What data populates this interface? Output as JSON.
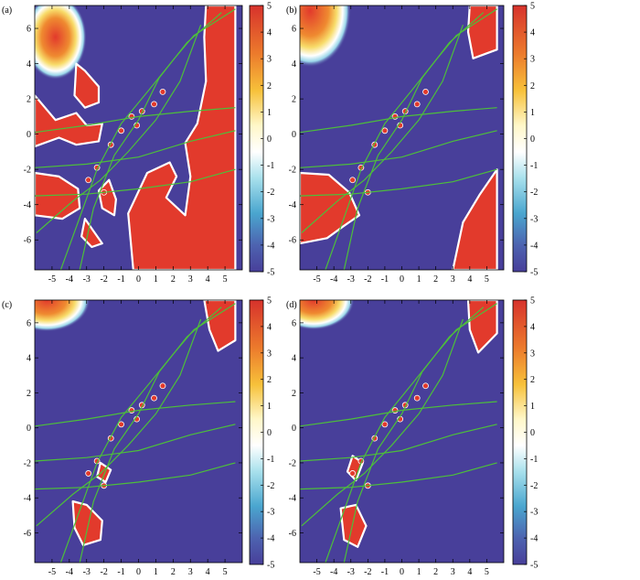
{
  "colors": {
    "background": "#483f9a",
    "positive": "#e23a2c",
    "ridge": "#ffffff",
    "curves": "#4dbf3a"
  },
  "chart_data": [
    {
      "type": "heatmap",
      "panel_label": "(a)",
      "xlim": [
        -6,
        6
      ],
      "ylim": [
        -7.7,
        7.3
      ],
      "xticks": [
        "-5",
        "-4",
        "-3",
        "-2",
        "-1",
        "0",
        "1",
        "2",
        "3",
        "4",
        "5"
      ],
      "yticks": [
        "6",
        "4",
        "2",
        "0",
        "-2",
        "-4",
        "-6"
      ],
      "colorbar": {
        "range": [
          -5,
          5
        ],
        "ticks": [
          "5",
          "4",
          "3",
          "2",
          "1",
          "0",
          "-1",
          "-2",
          "-3",
          "-4",
          "-5"
        ]
      },
      "grid": false
    },
    {
      "type": "heatmap",
      "panel_label": "(b)",
      "xlim": [
        -6,
        6
      ],
      "ylim": [
        -7.7,
        7.3
      ],
      "xticks": [
        "-5",
        "-4",
        "-3",
        "-2",
        "-1",
        "0",
        "1",
        "2",
        "3",
        "4",
        "5"
      ],
      "yticks": [
        "6",
        "4",
        "2",
        "0",
        "-2",
        "-4",
        "-6"
      ],
      "colorbar": {
        "range": [
          -5,
          5
        ],
        "ticks": [
          "5",
          "4",
          "3",
          "2",
          "1",
          "0",
          "-1",
          "-2",
          "-3",
          "-4",
          "-5"
        ]
      },
      "grid": false
    },
    {
      "type": "heatmap",
      "panel_label": "(c)",
      "xlim": [
        -6,
        6
      ],
      "ylim": [
        -7.7,
        7.3
      ],
      "xticks": [
        "-5",
        "-4",
        "-3",
        "-2",
        "-1",
        "0",
        "1",
        "2",
        "3",
        "4",
        "5"
      ],
      "yticks": [
        "6",
        "4",
        "2",
        "0",
        "-2",
        "-4",
        "-6"
      ],
      "colorbar": {
        "range": [
          -5,
          5
        ],
        "ticks": [
          "5",
          "4",
          "3",
          "2",
          "1",
          "0",
          "-1",
          "-2",
          "-3",
          "-4",
          "-5"
        ]
      },
      "grid": false
    },
    {
      "type": "heatmap",
      "panel_label": "(d)",
      "xlim": [
        -6,
        6
      ],
      "ylim": [
        -7.7,
        7.3
      ],
      "xticks": [
        "-5",
        "-4",
        "-3",
        "-2",
        "-1",
        "0",
        "1",
        "2",
        "3",
        "4",
        "5"
      ],
      "yticks": [
        "6",
        "4",
        "2",
        "0",
        "-2",
        "-4",
        "-6"
      ],
      "colorbar": {
        "range": [
          -5,
          5
        ],
        "ticks": [
          "5",
          "4",
          "3",
          "2",
          "1",
          "0",
          "-1",
          "-2",
          "-3",
          "-4",
          "-5"
        ]
      },
      "grid": false
    }
  ]
}
